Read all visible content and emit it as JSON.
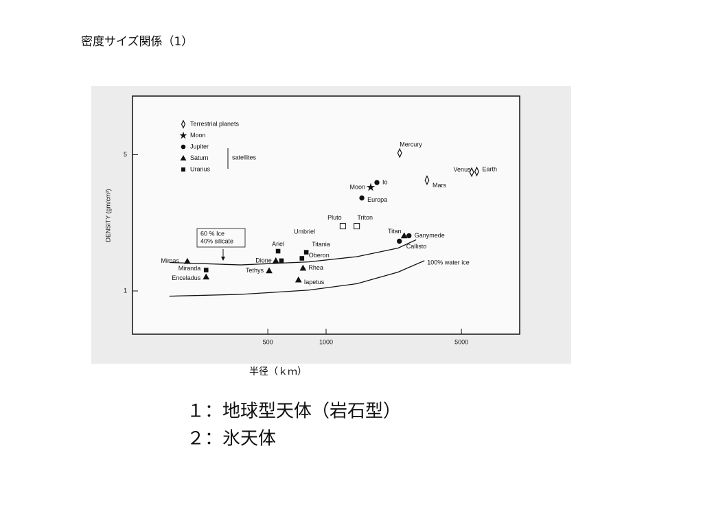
{
  "chart_data": {
    "type": "scatter",
    "title": "密度サイズ関係（1）",
    "x_label": "半径（ｋｍ）",
    "y_label": "DENSITY (gm/cm³)",
    "log_x": true,
    "log_y": true,
    "xlim": [
      100,
      10000
    ],
    "ylim": [
      0.6,
      10
    ],
    "xticks": [
      500,
      1000,
      5000
    ],
    "yticks": [
      1,
      5
    ],
    "legend_group_label": "satellites",
    "series": [
      {
        "name": "Terrestrial planets",
        "marker": "diamond",
        "x": [
          2400,
          5650,
          6000,
          3320
        ],
        "y": [
          5.1,
          4.07,
          4.1,
          3.7
        ],
        "labels": [
          "Mercury",
          "Venus",
          "Earth",
          "Mars"
        ]
      },
      {
        "name": "Moon",
        "marker": "star",
        "x": [
          1700
        ],
        "y": [
          3.4
        ],
        "labels": [
          "Moon"
        ]
      },
      {
        "name": "Jupiter",
        "marker": "circle",
        "x": [
          1830,
          1530,
          2680,
          2390
        ],
        "y": [
          3.6,
          3.0,
          1.92,
          1.8
        ],
        "labels": [
          "Io",
          "Europa",
          "Ganymede",
          "Callisto"
        ]
      },
      {
        "name": "Saturn",
        "marker": "triangle",
        "x": [
          2530,
          192,
          240,
          508,
          550,
          760,
          720
        ],
        "y": [
          1.92,
          1.42,
          1.18,
          1.27,
          1.43,
          1.31,
          1.14
        ],
        "labels": [
          "Titan",
          "Mimas",
          "Enceladus",
          "Tethys",
          "Dione",
          "Rhea",
          "Iapetus"
        ]
      },
      {
        "name": "Uranus",
        "marker": "square",
        "x": [
          240,
          565,
          588,
          790,
          750
        ],
        "y": [
          1.28,
          1.6,
          1.43,
          1.58,
          1.47
        ],
        "labels": [
          "Miranda",
          "Ariel",
          "Umbriel",
          "Titania",
          "Oberon"
        ]
      },
      {
        "marker": "open-square",
        "x": [
          1220,
          1440
        ],
        "y": [
          2.15,
          2.15
        ],
        "labels": [
          "Pluto",
          "Triton"
        ]
      }
    ],
    "curves": [
      {
        "label": [
          "60 % Ice",
          "40% silicate"
        ],
        "x": [
          155,
          361,
          815,
          1445,
          2356,
          2918
        ],
        "y": [
          1.4,
          1.36,
          1.41,
          1.5,
          1.66,
          1.83
        ]
      },
      {
        "label": [
          "100% water ice"
        ],
        "x": [
          155,
          361,
          815,
          1445,
          2356,
          3220
        ],
        "y": [
          0.94,
          0.96,
          1.01,
          1.09,
          1.25,
          1.43
        ]
      }
    ],
    "notes": [
      "１：地球型天体（岩石型）",
      "２：氷天体"
    ]
  }
}
